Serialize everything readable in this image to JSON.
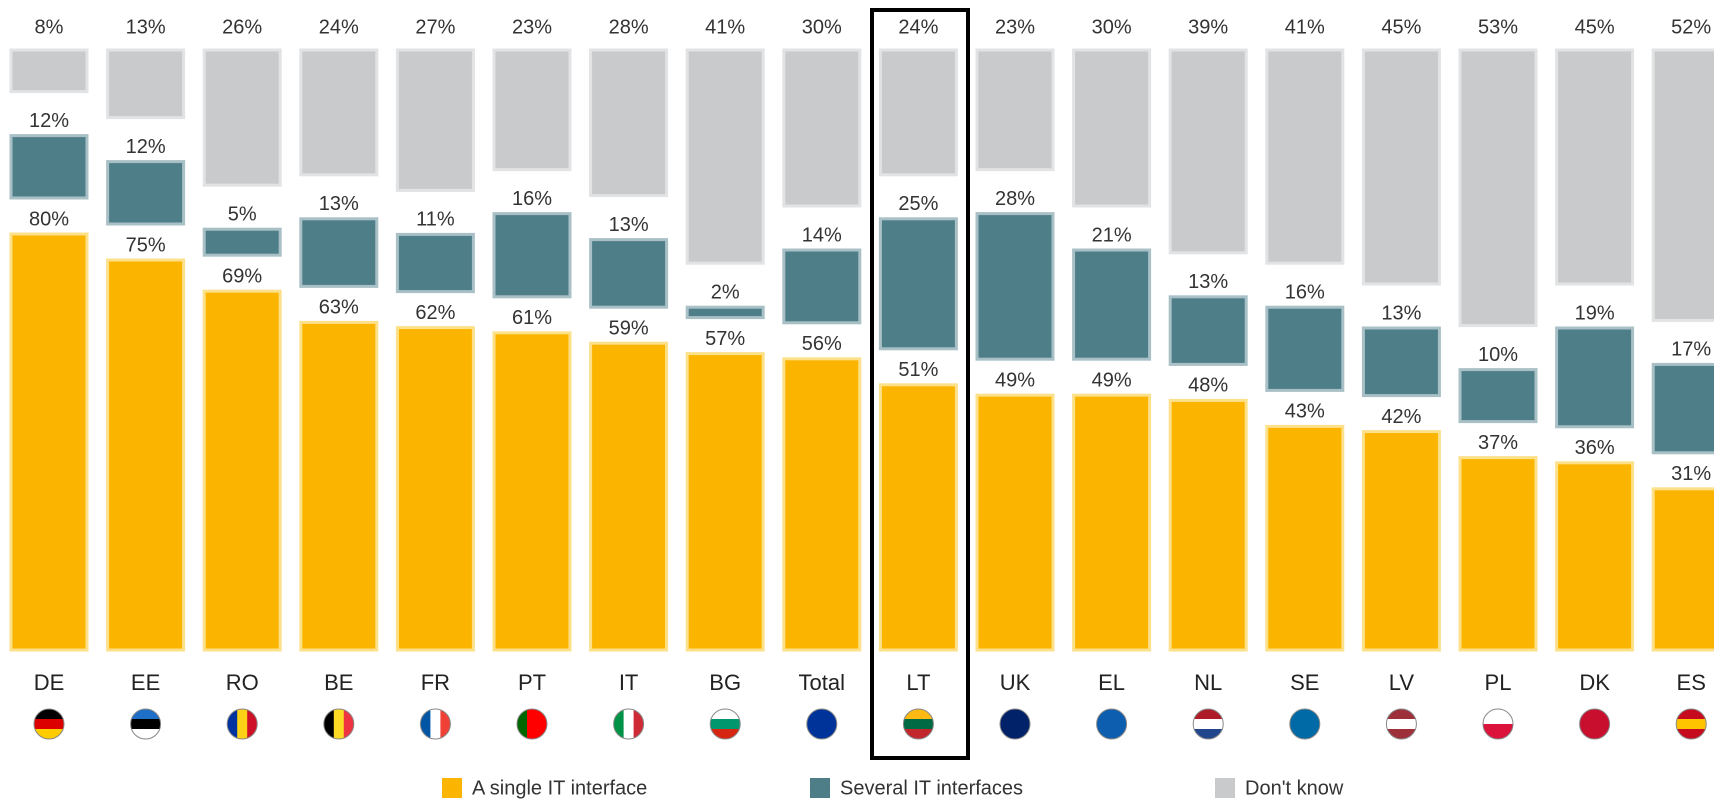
{
  "chart_data": {
    "type": "bar",
    "categories": [
      "DE",
      "EE",
      "RO",
      "BE",
      "FR",
      "PT",
      "IT",
      "BG",
      "Total",
      "LT",
      "UK",
      "EL",
      "NL",
      "SE",
      "LV",
      "PL",
      "DK",
      "ES"
    ],
    "series": [
      {
        "name": "A single IT interface",
        "color": "#fbb500",
        "values": [
          80,
          75,
          69,
          63,
          62,
          61,
          59,
          57,
          56,
          51,
          49,
          49,
          48,
          43,
          42,
          37,
          36,
          31
        ],
        "value_labels": [
          "80%",
          "75%",
          "69%",
          "63%",
          "62%",
          "61%",
          "59%",
          "57%",
          "56%",
          "51%",
          "49%",
          "49%",
          "48%",
          "43%",
          "42%",
          "37%",
          "36%",
          "31%"
        ]
      },
      {
        "name": "Several IT interfaces",
        "color": "#4e7e88",
        "values": [
          12,
          12,
          5,
          13,
          11,
          16,
          13,
          2,
          14,
          25,
          28,
          21,
          13,
          16,
          13,
          10,
          19,
          17
        ],
        "value_labels": [
          "12%",
          "12%",
          "5%",
          "13%",
          "11%",
          "16%",
          "13%",
          "2%",
          "14%",
          "25%",
          "28%",
          "21%",
          "13%",
          "16%",
          "13%",
          "10%",
          "19%",
          "17%"
        ]
      },
      {
        "name": "Don't know",
        "color": "#c9cacc",
        "values": [
          8,
          13,
          26,
          24,
          27,
          23,
          28,
          41,
          30,
          24,
          23,
          30,
          39,
          41,
          45,
          53,
          45,
          52
        ],
        "value_labels": [
          "8%",
          "13%",
          "26%",
          "24%",
          "27%",
          "23%",
          "28%",
          "41%",
          "30%",
          "24%",
          "23%",
          "30%",
          "39%",
          "41%",
          "45%",
          "53%",
          "45%",
          "52%"
        ]
      }
    ]
  }
}
